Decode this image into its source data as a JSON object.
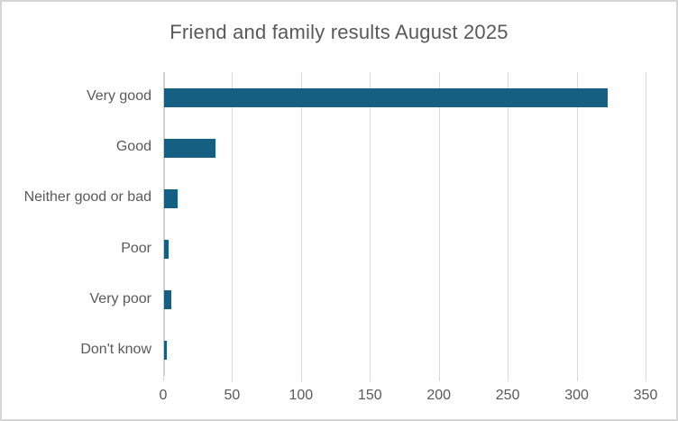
{
  "chart_data": {
    "type": "bar",
    "orientation": "horizontal",
    "title": "Friend and family results August 2025",
    "categories": [
      "Very good",
      "Good",
      "Neither good or bad",
      "Poor",
      "Very poor",
      "Don't know"
    ],
    "values": [
      322,
      37,
      10,
      3,
      5,
      2
    ],
    "xlabel": "",
    "ylabel": "",
    "xlim": [
      0,
      350
    ],
    "xticks": [
      0,
      50,
      100,
      150,
      200,
      250,
      300,
      350
    ],
    "grid": "vertical",
    "legend": "none",
    "colors": {
      "bar": "#156082",
      "gridline": "#d9d9d9",
      "zero_line": "#cfcfcf",
      "tick_mark": "#d9d9d9",
      "text": "#595959",
      "title_text": "#595959"
    }
  }
}
